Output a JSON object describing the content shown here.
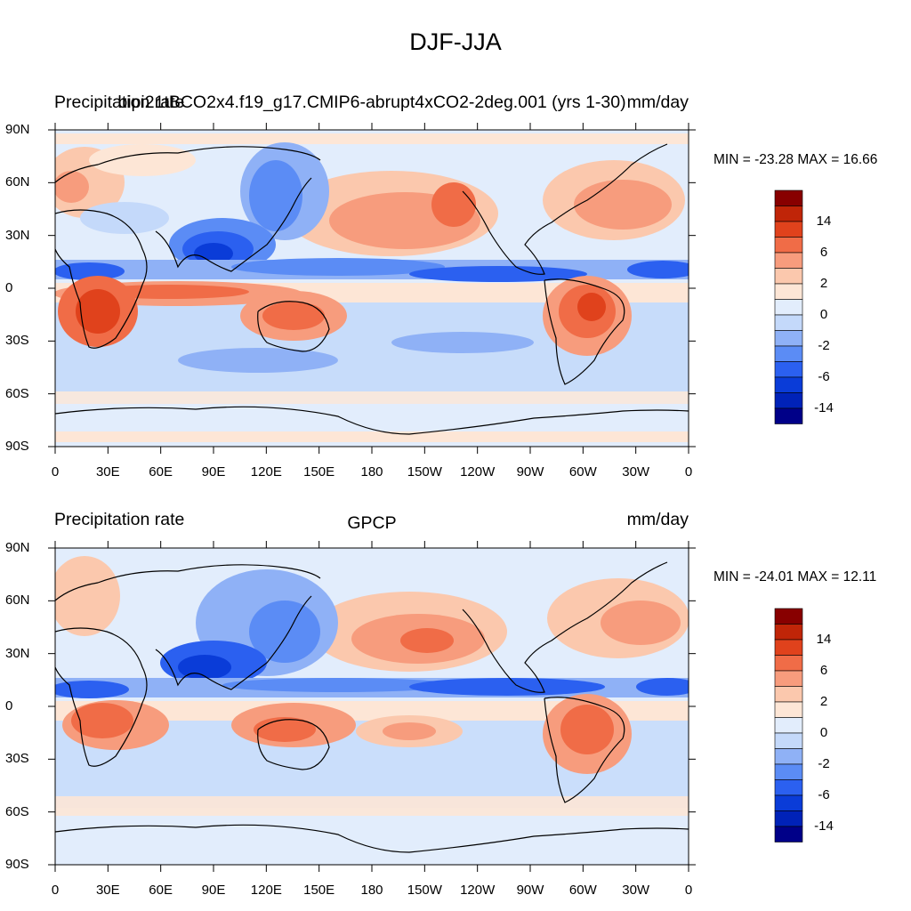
{
  "main_title": "DJF-JJA",
  "colors": {
    "palette": [
      "#000088",
      "#0022b8",
      "#0a3cd8",
      "#2b60f0",
      "#5b8cf5",
      "#8fb1f6",
      "#c4d9fa",
      "#e2edfc",
      "#fde6d6",
      "#fbc8ad",
      "#f79c7d",
      "#f06c47",
      "#e0421c",
      "#c02508",
      "#880000"
    ],
    "land_outline": "#000000",
    "frame": "#000000"
  },
  "panels": [
    {
      "left_string": "Precipitation rate",
      "center_string": "bipi21tBCO2x4.f19_g17.CMIP6-abrupt4xCO2-2deg.001 (yrs 1-30)",
      "right_string": "mm/day",
      "min_max": "MIN = -23.28 MAX =  16.66"
    },
    {
      "left_string": "Precipitation rate",
      "center_string": "GPCP",
      "right_string": "mm/day",
      "min_max": "MIN = -24.01 MAX =  12.11"
    }
  ],
  "axes": {
    "lon_ticks": [
      "0",
      "30E",
      "60E",
      "90E",
      "120E",
      "150E",
      "180",
      "150W",
      "120W",
      "90W",
      "60W",
      "30W",
      "0"
    ],
    "lat_ticks": [
      "90N",
      "60N",
      "30N",
      "0",
      "30S",
      "60S",
      "90S"
    ]
  },
  "colorbar_labels": [
    "14",
    "6",
    "2",
    "0",
    "-2",
    "-6",
    "-14"
  ]
}
